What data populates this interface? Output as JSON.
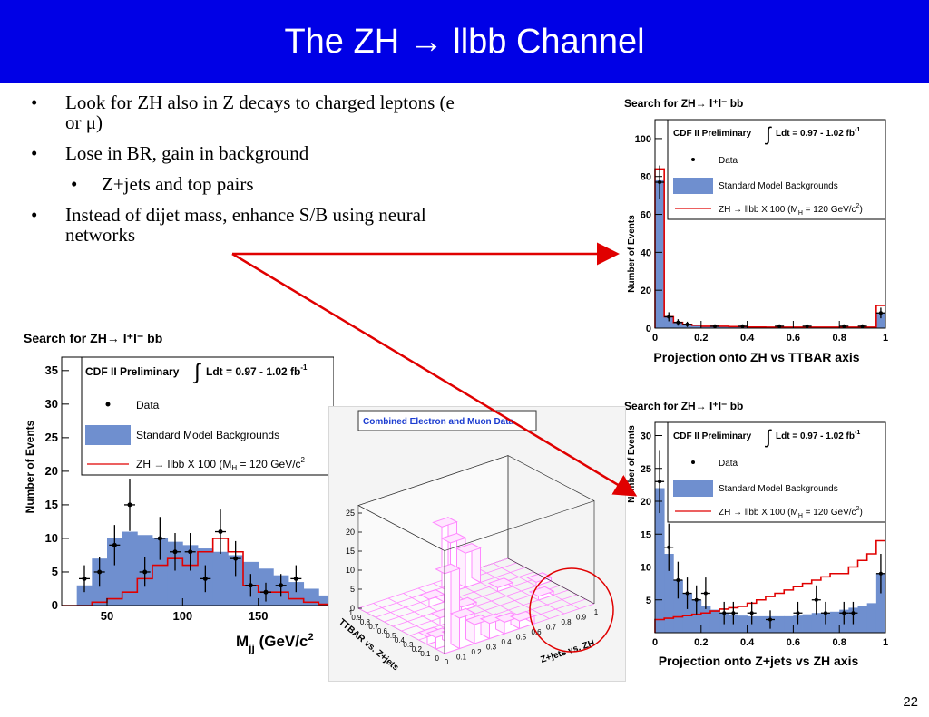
{
  "slide": {
    "title": "The ZH → llbb Channel",
    "page_number": "22",
    "bullets": [
      {
        "text": "Look for ZH also in Z decays to charged leptons (e or μ)",
        "level": 1
      },
      {
        "text": "Lose in BR, gain in background",
        "level": 1
      },
      {
        "text": "Z+jets and top pairs",
        "level": 2
      },
      {
        "text": "Instead of dijet mass, enhance S/B using neural networks",
        "level": 1
      }
    ],
    "bullet_glyph": "•",
    "arrow_color": "#e00000",
    "title_bg": "#0000e6"
  },
  "legend_common": {
    "experiment": "CDF II Preliminary",
    "lumi": "Ldt = 0.97 - 1.02 fb",
    "lumi_exp": "-1",
    "data_label": "Data",
    "bkg_label": "Standard Model Backgrounds",
    "sig_label": "ZH → llbb X 100 (M",
    "sig_sub": "H",
    "sig_tail": " = 120 GeV/c",
    "sig_exp": "2",
    "sig_close": ")",
    "bkg_color": "#6f8fcf",
    "sig_color": "#e00000"
  },
  "chart_data": [
    {
      "id": "mjj",
      "type": "bar",
      "title": "Search for ZH→ l⁺l⁻ bb",
      "ylabel": "Number of Events",
      "xlabel_main": "M",
      "xlabel_sub": "jj",
      "xlabel_unit": " (GeV/c",
      "xlabel_exp": "2",
      "xlim": [
        20,
        200
      ],
      "ylim": [
        0,
        37
      ],
      "xticks": [
        50,
        100,
        150
      ],
      "yticks": [
        0,
        5,
        10,
        15,
        20,
        25,
        30,
        35
      ],
      "bin_width": 10,
      "bin_edges_start": 20,
      "background": [
        0,
        3,
        7,
        10,
        11,
        10.5,
        10,
        9.5,
        9,
        8.5,
        8,
        7.5,
        6.5,
        5.5,
        4.5,
        3.5,
        2.5,
        1.5
      ],
      "signal": [
        0,
        0,
        0.5,
        1,
        2,
        4,
        6,
        7,
        6,
        8,
        10,
        8,
        3,
        2,
        2,
        1,
        0.5,
        0.2
      ],
      "data": [
        {
          "x": 35,
          "y": 4,
          "e": 2
        },
        {
          "x": 45,
          "y": 5,
          "e": 2.2
        },
        {
          "x": 55,
          "y": 9,
          "e": 3
        },
        {
          "x": 65,
          "y": 15,
          "e": 3.9
        },
        {
          "x": 75,
          "y": 5,
          "e": 2.2
        },
        {
          "x": 85,
          "y": 10,
          "e": 3.2
        },
        {
          "x": 95,
          "y": 8,
          "e": 2.8
        },
        {
          "x": 105,
          "y": 8,
          "e": 2.8
        },
        {
          "x": 115,
          "y": 4,
          "e": 2
        },
        {
          "x": 125,
          "y": 11,
          "e": 3.3
        },
        {
          "x": 135,
          "y": 7,
          "e": 2.6
        },
        {
          "x": 145,
          "y": 3,
          "e": 1.7
        },
        {
          "x": 155,
          "y": 2,
          "e": 1.4
        },
        {
          "x": 165,
          "y": 3,
          "e": 1.7
        },
        {
          "x": 175,
          "y": 4,
          "e": 2
        }
      ]
    },
    {
      "id": "zh_vs_ttbar",
      "type": "bar",
      "title": "Search for ZH→ l⁺l⁻ bb",
      "ylabel": "Number of Events",
      "xlabel": "Projection onto ZH vs TTBAR axis",
      "xlim": [
        0,
        1
      ],
      "ylim": [
        0,
        110
      ],
      "xticks": [
        "0",
        "0.2",
        "0.4",
        "0.6",
        "0.8",
        "1"
      ],
      "xtick_values": [
        0,
        0.2,
        0.4,
        0.6,
        0.8,
        1
      ],
      "yticks": [
        0,
        20,
        40,
        60,
        80,
        100
      ],
      "bin_width": 0.04,
      "background": [
        78,
        6,
        3,
        2,
        1.5,
        1,
        1,
        1,
        0.8,
        0.8,
        0.6,
        0.6,
        0.5,
        0.5,
        0.5,
        0.5,
        0.5,
        0.5,
        0.5,
        0.5,
        0.5,
        0.5,
        0.5,
        0.5,
        8
      ],
      "signal": [
        84,
        6,
        3,
        2,
        1.5,
        1,
        1,
        1,
        0.8,
        0.8,
        0.6,
        0.6,
        0.5,
        0.5,
        0.5,
        0.5,
        0.5,
        0.5,
        0.5,
        0.5,
        0.5,
        0.5,
        0.5,
        0.5,
        12
      ],
      "data": [
        {
          "x": 0.02,
          "y": 77,
          "e": 8.8
        },
        {
          "x": 0.06,
          "y": 6,
          "e": 2.4
        },
        {
          "x": 0.1,
          "y": 3,
          "e": 1.7
        },
        {
          "x": 0.14,
          "y": 2,
          "e": 1.4
        },
        {
          "x": 0.26,
          "y": 1,
          "e": 1
        },
        {
          "x": 0.38,
          "y": 1,
          "e": 1
        },
        {
          "x": 0.54,
          "y": 1,
          "e": 1
        },
        {
          "x": 0.66,
          "y": 1,
          "e": 1
        },
        {
          "x": 0.82,
          "y": 1,
          "e": 1
        },
        {
          "x": 0.9,
          "y": 1,
          "e": 1
        },
        {
          "x": 0.98,
          "y": 8,
          "e": 2.8
        }
      ]
    },
    {
      "id": "zjets_vs_zh",
      "type": "bar",
      "title": "Search for ZH→ l⁺l⁻ bb",
      "ylabel": "Number of Events",
      "xlabel": "Projection onto Z+jets vs ZH axis",
      "xlim": [
        0,
        1
      ],
      "ylim": [
        0,
        32
      ],
      "xticks": [
        "0",
        "0.2",
        "0.4",
        "0.6",
        "0.8",
        "1"
      ],
      "xtick_values": [
        0,
        0.2,
        0.4,
        0.6,
        0.8,
        1
      ],
      "yticks": [
        5,
        10,
        15,
        20,
        25,
        30
      ],
      "bin_width": 0.04,
      "background": [
        22,
        12,
        8,
        6,
        5,
        4,
        3.5,
        3,
        2.8,
        2.6,
        2.5,
        2.5,
        2.5,
        2.5,
        2.5,
        2.6,
        2.8,
        3,
        3,
        3.2,
        3.5,
        3.8,
        4,
        4.5,
        9
      ],
      "signal": [
        2,
        2.2,
        2.4,
        2.6,
        2.8,
        3,
        3.3,
        3.6,
        3.8,
        4,
        4.5,
        5,
        5.5,
        6,
        6.5,
        7,
        7.5,
        8,
        8.5,
        9,
        9,
        10,
        11,
        12,
        14
      ],
      "data": [
        {
          "x": 0.02,
          "y": 23,
          "e": 4.8
        },
        {
          "x": 0.06,
          "y": 13,
          "e": 3.6
        },
        {
          "x": 0.1,
          "y": 8,
          "e": 2.8
        },
        {
          "x": 0.14,
          "y": 6,
          "e": 2.4
        },
        {
          "x": 0.18,
          "y": 5,
          "e": 2.2
        },
        {
          "x": 0.22,
          "y": 6,
          "e": 2.4
        },
        {
          "x": 0.3,
          "y": 3,
          "e": 1.7
        },
        {
          "x": 0.34,
          "y": 3,
          "e": 1.7
        },
        {
          "x": 0.42,
          "y": 3,
          "e": 1.7
        },
        {
          "x": 0.5,
          "y": 2,
          "e": 1.4
        },
        {
          "x": 0.62,
          "y": 3,
          "e": 1.7
        },
        {
          "x": 0.7,
          "y": 5,
          "e": 2.2
        },
        {
          "x": 0.74,
          "y": 3,
          "e": 1.7
        },
        {
          "x": 0.82,
          "y": 3,
          "e": 1.7
        },
        {
          "x": 0.86,
          "y": 3,
          "e": 1.7
        },
        {
          "x": 0.98,
          "y": 9,
          "e": 3
        }
      ]
    },
    {
      "id": "lego",
      "type": "heatmap",
      "title": "Combined Electron and Muon Data",
      "xlabel": "Z+jets vs. ZH",
      "ylabel": "TTBAR vs. Z+jets",
      "xticks": [
        "0",
        "0.1",
        "0.2",
        "0.3",
        "0.4",
        "0.5",
        "0.6",
        "0.7",
        "0.8",
        "0.9",
        "1"
      ],
      "yticks": [
        "0",
        "0.1",
        "0.2",
        "0.3",
        "0.4",
        "0.5",
        "0.6",
        "0.7",
        "0.8",
        "0.9",
        "1"
      ],
      "zticks": [
        "0",
        "5",
        "10",
        "15",
        "20",
        "25"
      ],
      "zlim": [
        0,
        27
      ],
      "towers": [
        {
          "x": 0,
          "y": 0,
          "z": 21
        },
        {
          "x": 1,
          "y": 0,
          "z": 8
        },
        {
          "x": 2,
          "y": 0,
          "z": 5
        },
        {
          "x": 3,
          "y": 0,
          "z": 4
        },
        {
          "x": 4,
          "y": 0,
          "z": 3
        },
        {
          "x": 5,
          "y": 0,
          "z": 2
        },
        {
          "x": 0,
          "y": 1,
          "z": 3
        },
        {
          "x": 1,
          "y": 1,
          "z": 2
        },
        {
          "x": 0,
          "y": 2,
          "z": 2
        },
        {
          "x": 5,
          "y": 8,
          "z": 13
        },
        {
          "x": 6,
          "y": 8,
          "z": 9
        },
        {
          "x": 5,
          "y": 9,
          "z": 16
        },
        {
          "x": 3,
          "y": 7,
          "z": 2
        },
        {
          "x": 2,
          "y": 4,
          "z": 2
        },
        {
          "x": 8,
          "y": 3,
          "z": 1
        },
        {
          "x": 9,
          "y": 5,
          "z": 1
        },
        {
          "x": 4,
          "y": 5,
          "z": 1
        },
        {
          "x": 7,
          "y": 6,
          "z": 1
        }
      ],
      "bar_color": "#ff88ff"
    }
  ]
}
